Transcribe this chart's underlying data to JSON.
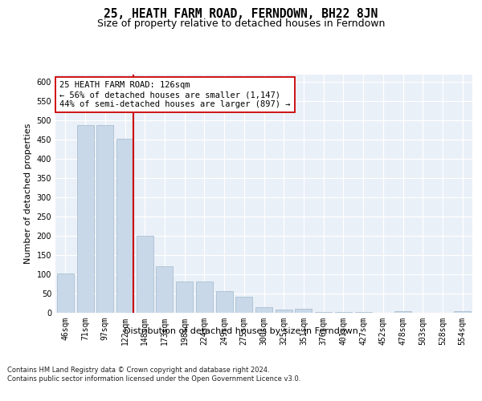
{
  "title": "25, HEATH FARM ROAD, FERNDOWN, BH22 8JN",
  "subtitle": "Size of property relative to detached houses in Ferndown",
  "xlabel": "Distribution of detached houses by size in Ferndown",
  "ylabel": "Number of detached properties",
  "categories": [
    "46sqm",
    "71sqm",
    "97sqm",
    "122sqm",
    "148sqm",
    "173sqm",
    "198sqm",
    "224sqm",
    "249sqm",
    "275sqm",
    "300sqm",
    "325sqm",
    "351sqm",
    "376sqm",
    "401sqm",
    "427sqm",
    "452sqm",
    "478sqm",
    "503sqm",
    "528sqm",
    "554sqm"
  ],
  "values": [
    103,
    487,
    487,
    453,
    200,
    120,
    82,
    82,
    57,
    42,
    15,
    8,
    11,
    3,
    3,
    3,
    0,
    5,
    0,
    0,
    5
  ],
  "bar_color": "#c8d8e8",
  "bar_edge_color": "#a0b8cc",
  "vline_index": 3,
  "vline_color": "#cc0000",
  "annotation_text": "25 HEATH FARM ROAD: 126sqm\n← 56% of detached houses are smaller (1,147)\n44% of semi-detached houses are larger (897) →",
  "annotation_box_color": "#ffffff",
  "annotation_box_edge": "#cc0000",
  "footer": "Contains HM Land Registry data © Crown copyright and database right 2024.\nContains public sector information licensed under the Open Government Licence v3.0.",
  "plot_bg_color": "#eaf0f8",
  "ylim": [
    0,
    620
  ],
  "yticks": [
    0,
    50,
    100,
    150,
    200,
    250,
    300,
    350,
    400,
    450,
    500,
    550,
    600
  ],
  "title_fontsize": 10.5,
  "subtitle_fontsize": 9,
  "ylabel_fontsize": 8,
  "xlabel_fontsize": 8,
  "tick_fontsize": 7,
  "ann_fontsize": 7.5,
  "footer_fontsize": 6
}
